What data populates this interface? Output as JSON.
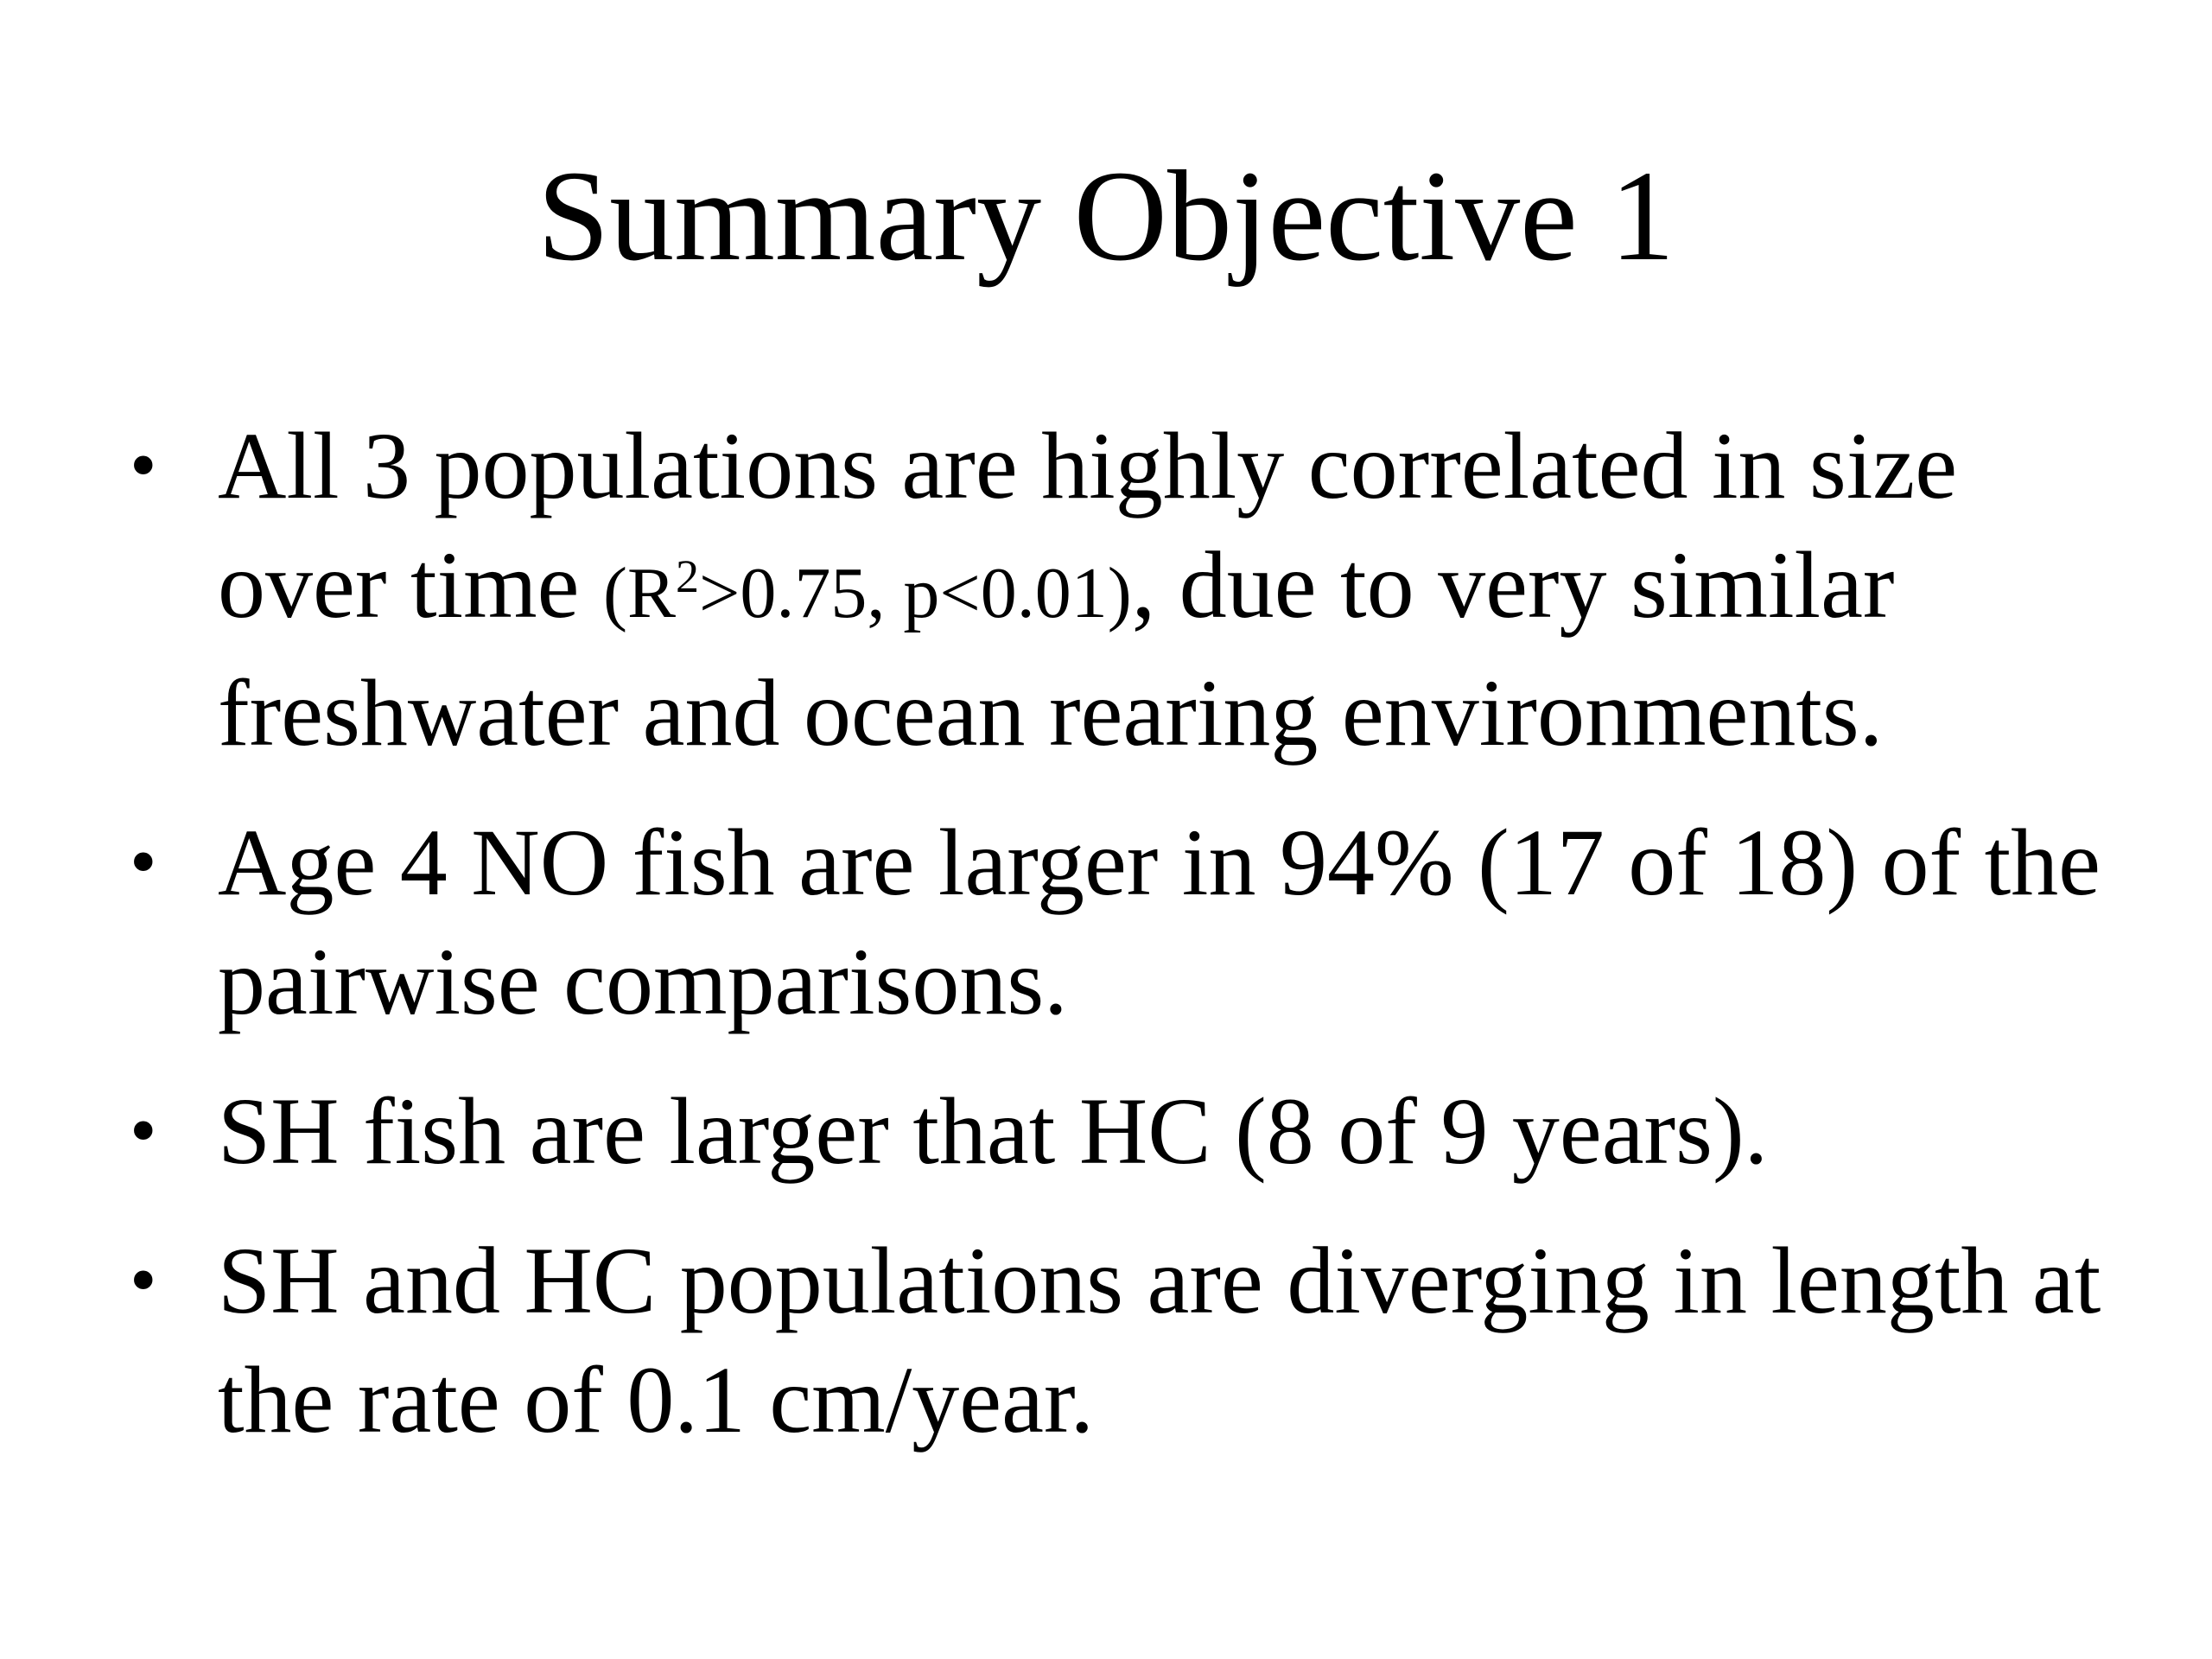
{
  "slide": {
    "title": "Summary Objective 1",
    "bullets": [
      {
        "text_before": "All 3 populations are highly correlated in size over time ",
        "stat_r": "(R",
        "stat_sup": "2",
        "stat_rest": ">0.75, p<0.01)",
        "text_after": ", due to very similar freshwater and ocean rearing environments."
      },
      {
        "text": " Age 4 NO fish are larger in 94% (17 of 18) of the pairwise comparisons."
      },
      {
        "text": "SH fish are larger that HC (8 of 9 years)."
      },
      {
        "text": "SH and HC populations are diverging in length at the rate of 0.1 cm/year."
      }
    ],
    "bullet_glyph": "•"
  }
}
